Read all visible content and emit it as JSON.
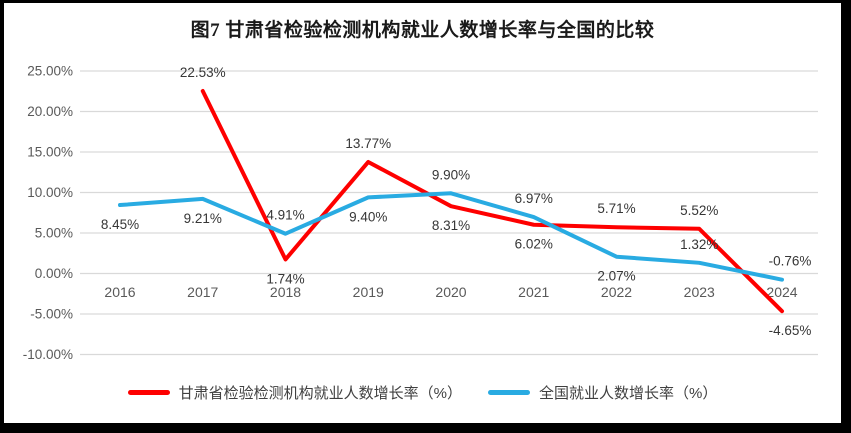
{
  "title": "图7 甘肃省检验检测机构就业人数增长率与全国的比较",
  "colors": {
    "page_background": "#000000",
    "card_background": "#ffffff",
    "gridline": "#d9d9d9",
    "axis_text": "#595959",
    "data_label_text": "#363636",
    "title_text": "#1a1a1a",
    "legend_text": "#404040",
    "gansu_line": "#fe0000",
    "national_line": "#29abe2"
  },
  "chart_data": {
    "type": "line",
    "categories": [
      "2016",
      "2017",
      "2018",
      "2019",
      "2020",
      "2021",
      "2022",
      "2023",
      "2024"
    ],
    "series": [
      {
        "key": "gansu",
        "name": "甘肃省检验检测机构就业人数增长率（%）",
        "color": "#fe0000",
        "values": [
          null,
          22.53,
          1.74,
          13.77,
          8.31,
          6.02,
          5.71,
          5.52,
          -4.65
        ],
        "data_labels": [
          "",
          "22.53%",
          "1.74%",
          "13.77%",
          "8.31%",
          "6.02%",
          "5.71%",
          "5.52%",
          "-4.65%"
        ],
        "label_positions": [
          null,
          "above",
          "below",
          "above",
          "below",
          "below",
          "above",
          "above",
          "below"
        ]
      },
      {
        "key": "national",
        "name": "全国就业人数增长率（%）",
        "color": "#29abe2",
        "values": [
          8.45,
          9.21,
          4.91,
          9.4,
          9.9,
          6.97,
          2.07,
          1.32,
          -0.76
        ],
        "data_labels": [
          "8.45%",
          "9.21%",
          "4.91%",
          "9.40%",
          "9.90%",
          "6.97%",
          "2.07%",
          "1.32%",
          "-0.76%"
        ],
        "label_positions": [
          "below",
          "below",
          "above",
          "below",
          "above",
          "above",
          "below",
          "above",
          "above"
        ]
      }
    ],
    "y_axis": {
      "min": -10,
      "max": 25,
      "step": 5
    },
    "y_tick_labels": [
      "25.00%",
      "20.00%",
      "15.00%",
      "10.00%",
      "5.00%",
      "0.00%",
      "-5.00%",
      "-10.00%"
    ],
    "xlabel": "",
    "ylabel": "",
    "grid": true,
    "legend_position": "bottom"
  }
}
